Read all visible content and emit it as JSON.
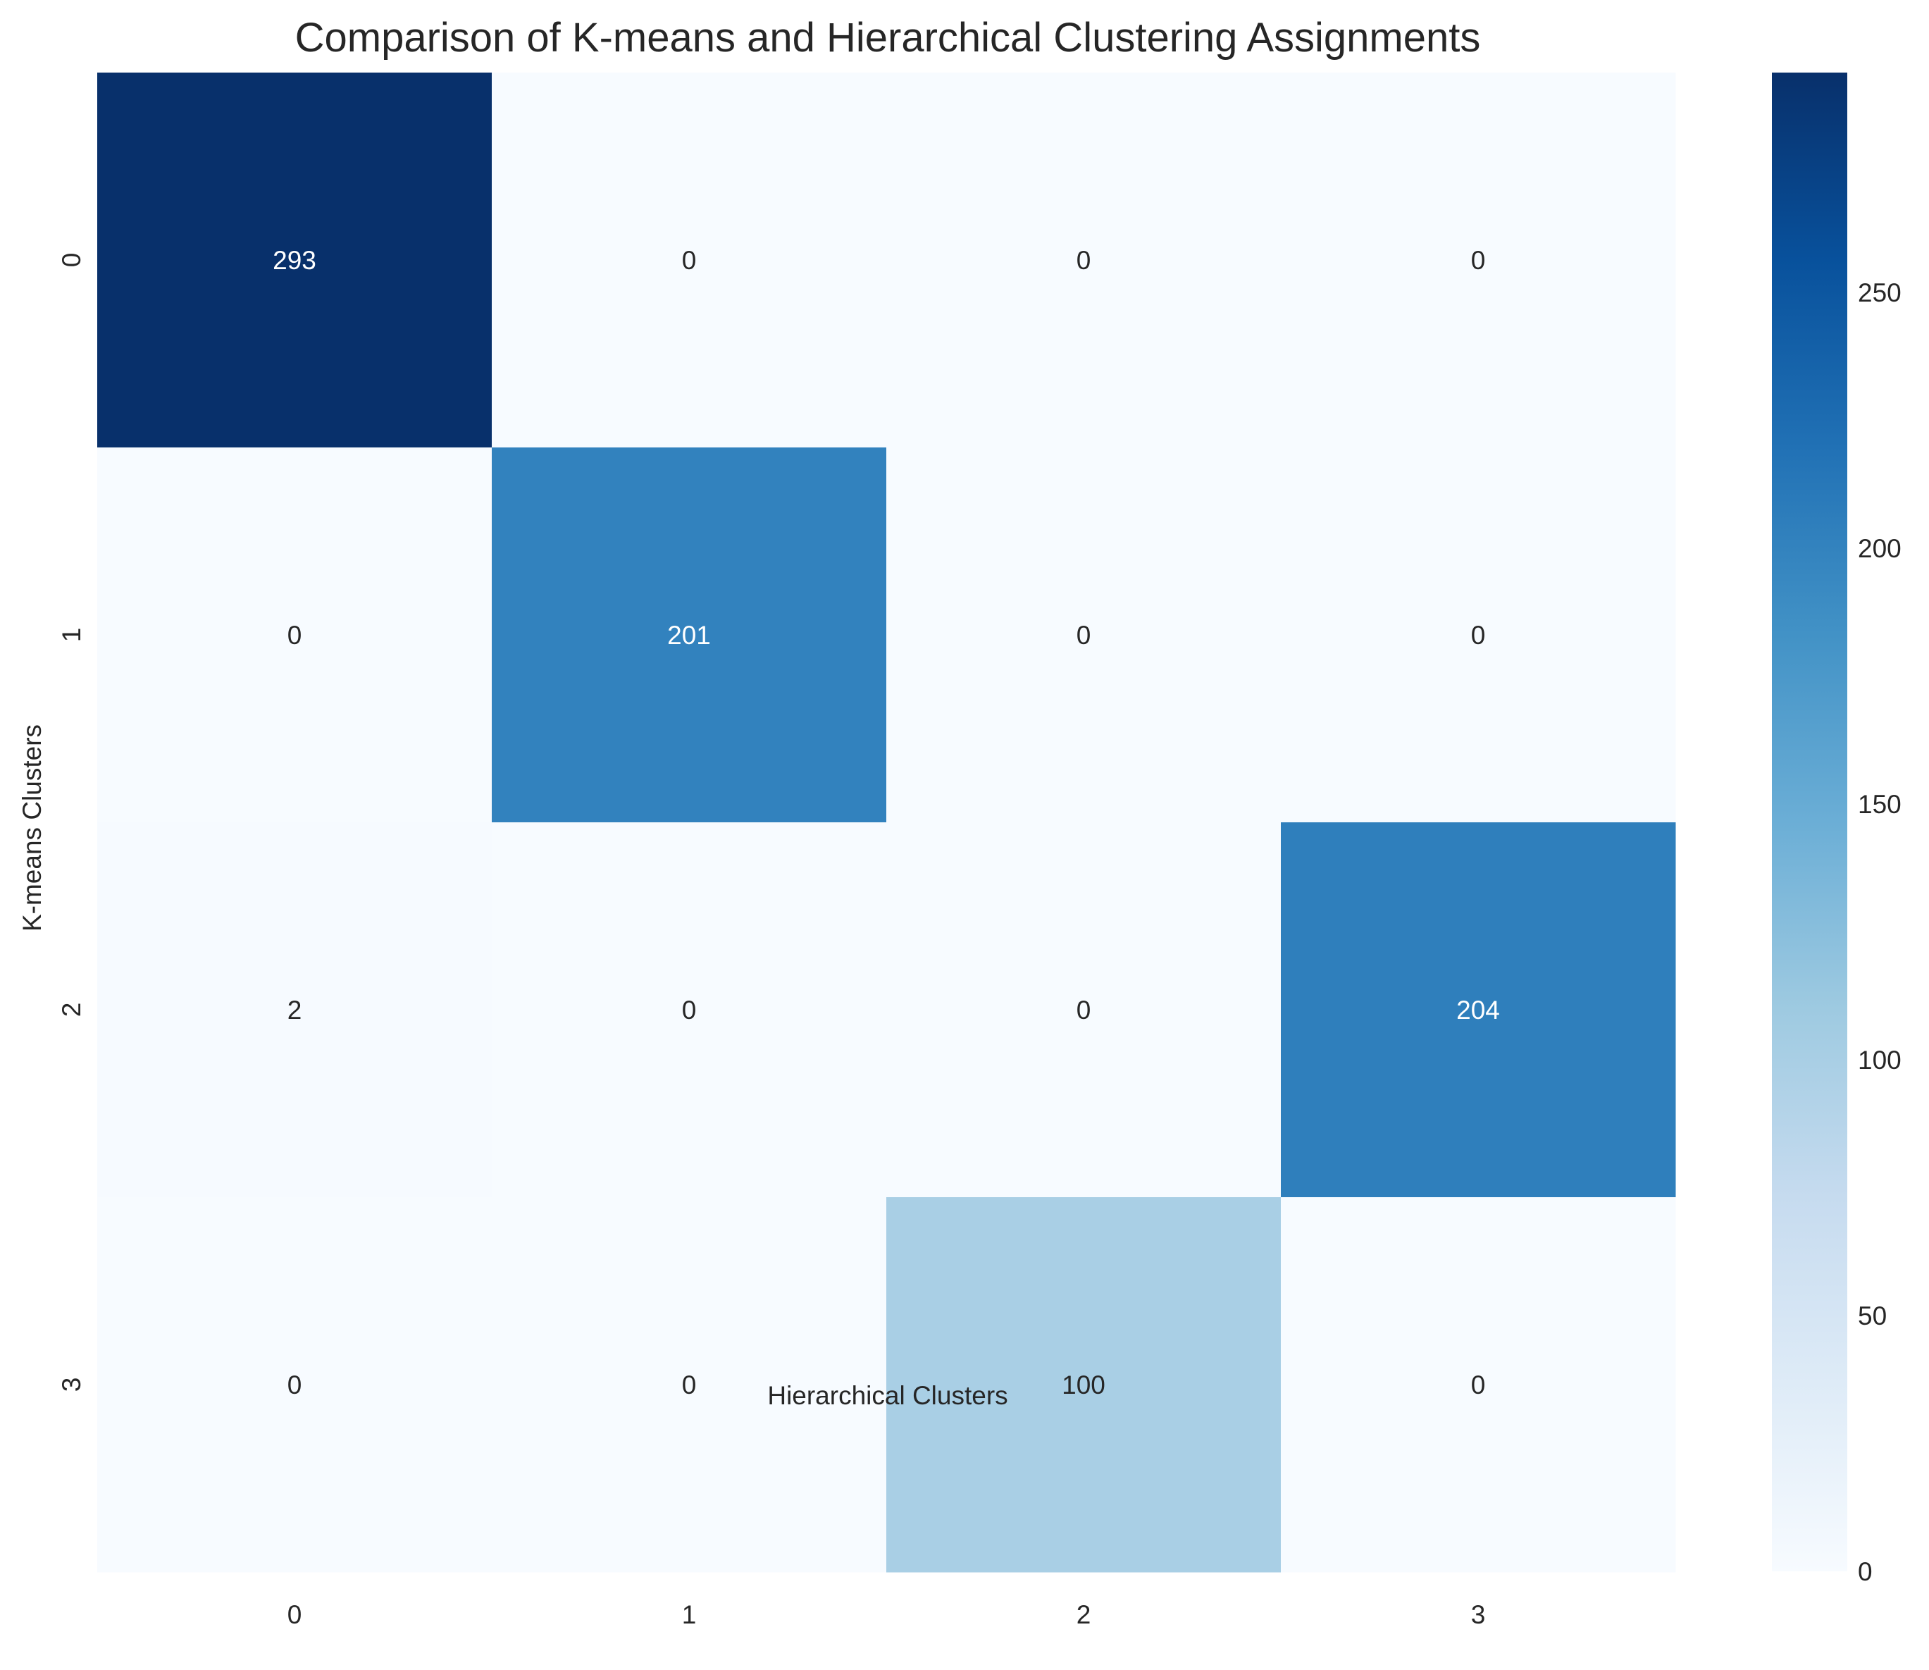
{
  "chart_data": {
    "type": "heatmap",
    "title": "Comparison of K-means and Hierarchical Clustering Assignments",
    "xlabel": "Hierarchical Clusters",
    "ylabel": "K-means Clusters",
    "x_categories": [
      "0",
      "1",
      "2",
      "3"
    ],
    "y_categories": [
      "0",
      "1",
      "2",
      "3"
    ],
    "values": [
      [
        293,
        0,
        0,
        0
      ],
      [
        0,
        201,
        0,
        0
      ],
      [
        2,
        0,
        0,
        204
      ],
      [
        0,
        0,
        100,
        0
      ]
    ],
    "colormap": "Blues",
    "color_range": [
      0,
      293
    ],
    "colorbar_ticks": [
      "0",
      "50",
      "100",
      "150",
      "200",
      "250"
    ],
    "colorbar_tick_values": [
      0,
      50,
      100,
      150,
      200,
      250
    ],
    "annotations": true,
    "grid": false,
    "colors": {
      "text_dark": "#262626",
      "text_light": "#ffffff",
      "blues_stops": [
        "#f7fbff",
        "#deebf7",
        "#c6dbef",
        "#9ecae1",
        "#6baed6",
        "#4292c6",
        "#2171b5",
        "#08519c",
        "#08306b"
      ]
    }
  }
}
